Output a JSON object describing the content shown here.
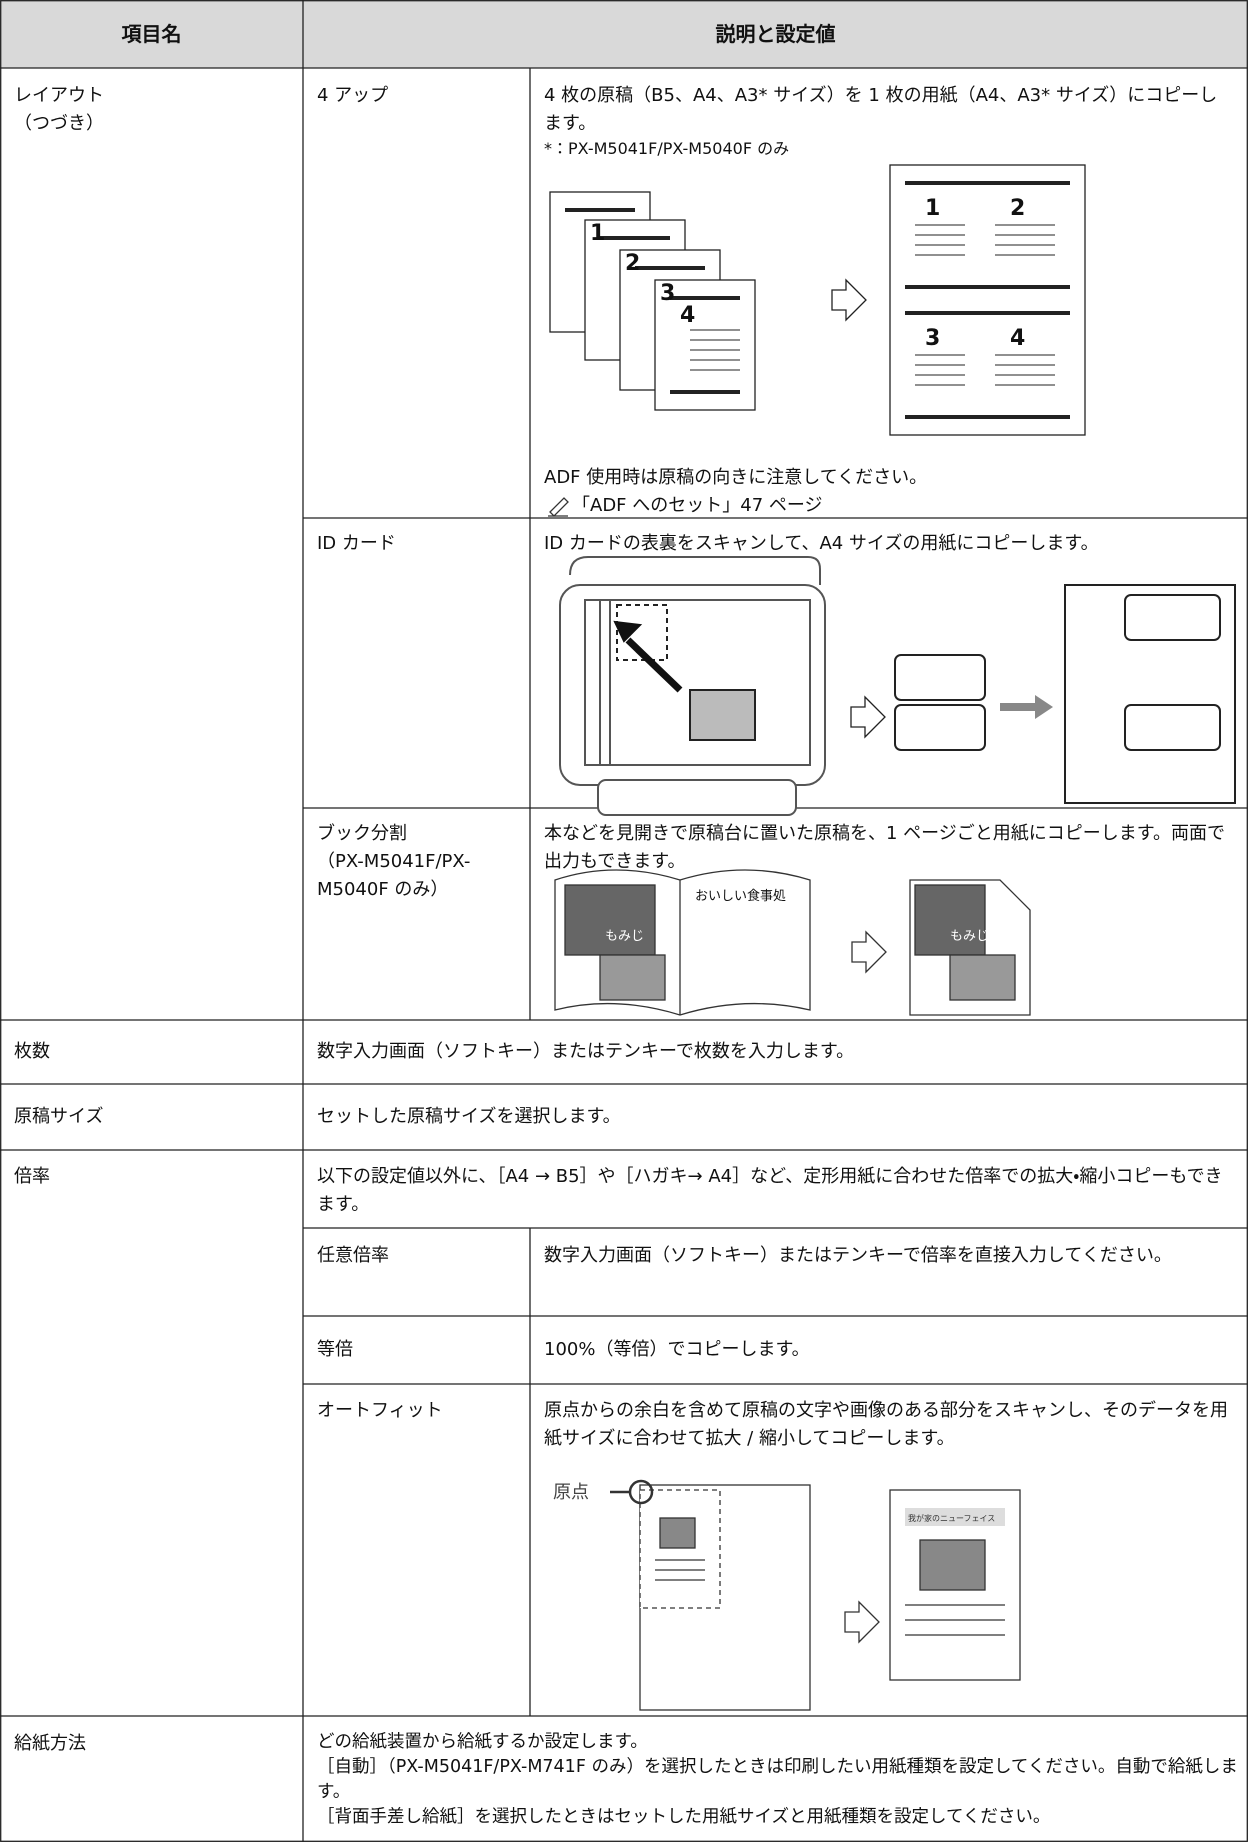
{
  "header": {
    "item": "項目名",
    "description": "説明と設定値"
  },
  "layout": {
    "item": [
      "レイアウト",
      "（つづき）"
    ],
    "four_up": {
      "name": "4 アップ",
      "text": [
        "4 枚の原稿（B5、A4、A3* サイズ）を 1 枚の用紙（A4、A3* サイズ）にコピーします。",
        "*：PX-M5041F/PX-M5040F のみ"
      ],
      "figure_left": [
        "1",
        "2",
        "3",
        "4"
      ],
      "figure_right": [
        "1",
        "2",
        "3",
        "4"
      ],
      "note": "ADF 使用時は原稿の向きに注意してください。",
      "link": "「ADF へのセット」47 ページ"
    },
    "id_card": {
      "name": "ID カード",
      "text": "ID カードの表裏をスキャンして、A4 サイズの用紙にコピーします。"
    },
    "book": {
      "name": [
        "ブック分割",
        "（PX-M5041F/PX-",
        "M5040F のみ）"
      ],
      "text": "本などを見開きで原稿台に置いた原稿を、1 ページごと用紙にコピーします。両面で出力もできます。",
      "figure": {
        "shop": "おいしい食事処",
        "left_caption": "もみじ",
        "right_caption": "もみじ"
      }
    }
  },
  "copies": {
    "item": "枚数",
    "text": "数字入力画面（ソフトキー）またはテンキーで枚数を入力します。"
  },
  "original_size": {
    "item": "原稿サイズ",
    "text": "セットした原稿サイズを選択します。"
  },
  "ratio": {
    "item": "倍率",
    "text": "以下の設定値以外に、［A4 → B5］や［ハガキ→ A4］など、定形用紙に合わせた倍率での拡大・縮小コピーもできます。",
    "custom": {
      "name": "任意倍率",
      "text": "数字入力画面（ソフトキー）またはテンキーで倍率を直接入力してください。"
    },
    "actual": {
      "name": "等倍",
      "text": "100%（等倍）でコピーします。"
    },
    "auto_fit": {
      "name": "オートフィット",
      "text": "原点からの余白を含めて原稿の文字や画像のある部分をスキャンし、そのデータを用紙サイズに合わせて拡大 / 縮小してコピーします。",
      "origin": "原点",
      "photo_title": "我が家のニューフェイス"
    }
  },
  "paper_source": {
    "item": "給紙方法",
    "text": [
      "どの給紙装置から給紙するか設定します。",
      "［自動］（PX-M5041F/PX-M741F のみ）を選択したときは印刷したい用紙種類を設定してください。自動で給紙します。",
      "［背面手差し給紙］を選択したときはセットした用紙サイズと用紙種類を設定してください。"
    ]
  }
}
